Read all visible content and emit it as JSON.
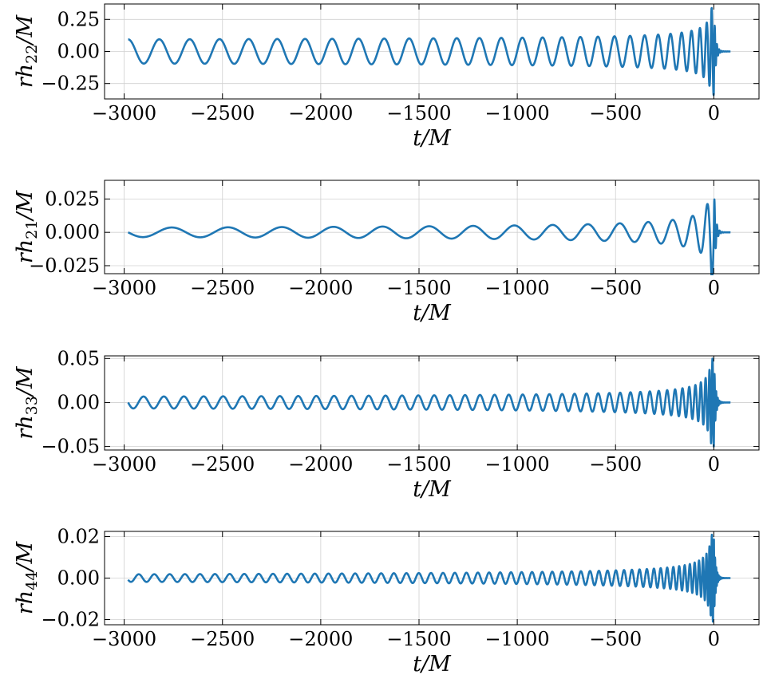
{
  "chart_data": [
    {
      "type": "line",
      "xlabel": "t/M",
      "ylabel": "rh22/M",
      "ylabel_base": "rh",
      "ylabel_sub": "22",
      "ylabel_tail": "/M",
      "xlim": [
        -3100,
        230
      ],
      "ylim": [
        -0.37,
        0.37
      ],
      "xticks": [
        -3000,
        -2500,
        -2000,
        -1500,
        -1000,
        -500,
        0
      ],
      "xtick_labels": [
        "−3000",
        "−2500",
        "−2000",
        "−1500",
        "−1000",
        "−500",
        "0"
      ],
      "yticks": [
        -0.25,
        0.0,
        0.25
      ],
      "ytick_labels": [
        "−0.25",
        "0.00",
        "0.25"
      ],
      "grid": true,
      "series": [
        {
          "color": "#1f77b4",
          "waveform": {
            "t_start": -2980,
            "t_merger": 0,
            "t_end": 85,
            "amp_start": 0.09,
            "amp_peak": 0.34,
            "period_start": 160,
            "period_merger": 20,
            "ringdown_period": 11,
            "phase0": 1.57
          }
        }
      ]
    },
    {
      "type": "line",
      "xlabel": "t/M",
      "ylabel": "rh21/M",
      "ylabel_base": "rh",
      "ylabel_sub": "21",
      "ylabel_tail": "/M",
      "xlim": [
        -3100,
        230
      ],
      "ylim": [
        -0.031,
        0.039
      ],
      "xticks": [
        -3000,
        -2500,
        -2000,
        -1500,
        -1000,
        -500,
        0
      ],
      "xtick_labels": [
        "−3000",
        "−2500",
        "−2000",
        "−1500",
        "−1000",
        "−500",
        "0"
      ],
      "yticks": [
        -0.025,
        0.0,
        0.025
      ],
      "ytick_labels": [
        "−0.025",
        "0.000",
        "0.025"
      ],
      "grid": true,
      "series": [
        {
          "color": "#1f77b4",
          "waveform": {
            "t_start": -2980,
            "t_merger": 0,
            "t_end": 85,
            "amp_start": 0.003,
            "amp_peak": 0.035,
            "period_start": 300,
            "period_merger": 40,
            "ringdown_period": 13,
            "phase0": 3.14
          }
        }
      ]
    },
    {
      "type": "line",
      "xlabel": "t/M",
      "ylabel": "rh33/M",
      "ylabel_base": "rh",
      "ylabel_sub": "33",
      "ylabel_tail": "/M",
      "xlim": [
        -3100,
        230
      ],
      "ylim": [
        -0.054,
        0.053
      ],
      "xticks": [
        -3000,
        -2500,
        -2000,
        -1500,
        -1000,
        -500,
        0
      ],
      "xtick_labels": [
        "−3000",
        "−2500",
        "−2000",
        "−1500",
        "−1000",
        "−500",
        "0"
      ],
      "yticks": [
        -0.05,
        0.0,
        0.05
      ],
      "ytick_labels": [
        "−0.05",
        "0.00",
        "0.05"
      ],
      "grid": true,
      "series": [
        {
          "color": "#1f77b4",
          "waveform": {
            "t_start": -2980,
            "t_merger": 0,
            "t_end": 85,
            "amp_start": 0.006,
            "amp_peak": 0.05,
            "period_start": 105,
            "period_merger": 14,
            "ringdown_period": 8,
            "phase0": 3.14
          }
        }
      ]
    },
    {
      "type": "line",
      "xlabel": "t/M",
      "ylabel": "rh44/M",
      "ylabel_base": "rh",
      "ylabel_sub": "44",
      "ylabel_tail": "/M",
      "xlim": [
        -3100,
        230
      ],
      "ylim": [
        -0.0225,
        0.0225
      ],
      "xticks": [
        -3000,
        -2500,
        -2000,
        -1500,
        -1000,
        -500,
        0
      ],
      "xtick_labels": [
        "−3000",
        "−2500",
        "−2000",
        "−1500",
        "−1000",
        "−500",
        "0"
      ],
      "yticks": [
        -0.02,
        0.0,
        0.02
      ],
      "ytick_labels": [
        "−0.02",
        "0.00",
        "0.02"
      ],
      "grid": true,
      "series": [
        {
          "color": "#1f77b4",
          "waveform": {
            "t_start": -2980,
            "t_merger": 0,
            "t_end": 85,
            "amp_start": 0.0015,
            "amp_peak": 0.021,
            "period_start": 80,
            "period_merger": 11,
            "ringdown_period": 6,
            "phase0": 3.6
          }
        }
      ]
    }
  ]
}
